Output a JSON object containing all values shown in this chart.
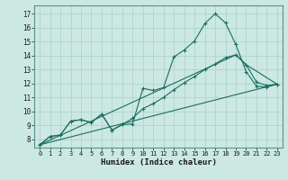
{
  "xlabel": "Humidex (Indice chaleur)",
  "xlim": [
    -0.5,
    23.5
  ],
  "ylim": [
    7.4,
    17.6
  ],
  "xticks": [
    0,
    1,
    2,
    3,
    4,
    5,
    6,
    7,
    8,
    9,
    10,
    11,
    12,
    13,
    14,
    15,
    16,
    17,
    18,
    19,
    20,
    21,
    22,
    23
  ],
  "yticks": [
    8,
    9,
    10,
    11,
    12,
    13,
    14,
    15,
    16,
    17
  ],
  "bg_color": "#cce8e2",
  "line_color": "#1a6e60",
  "grid_color": "#aacfc8",
  "line1_x": [
    0,
    1,
    2,
    3,
    4,
    5,
    6,
    7,
    8,
    9,
    10,
    11,
    12,
    13,
    14,
    15,
    16,
    17,
    18,
    19,
    20,
    21,
    22,
    23
  ],
  "line1_y": [
    7.6,
    8.2,
    8.3,
    9.3,
    9.4,
    9.2,
    9.8,
    8.65,
    9.05,
    9.1,
    11.65,
    11.5,
    11.7,
    13.9,
    14.4,
    15.05,
    16.3,
    17.0,
    16.35,
    14.8,
    12.85,
    11.8,
    11.75,
    11.95
  ],
  "line2_x": [
    0,
    1,
    2,
    3,
    4,
    5,
    6,
    7,
    8,
    9,
    10,
    11,
    12,
    13,
    14,
    15,
    16,
    17,
    18,
    19,
    20,
    21,
    22,
    23
  ],
  "line2_y": [
    7.6,
    8.2,
    8.3,
    9.3,
    9.4,
    9.2,
    9.8,
    8.65,
    9.05,
    9.5,
    10.2,
    10.55,
    11.0,
    11.55,
    12.05,
    12.5,
    13.0,
    13.4,
    13.85,
    14.05,
    13.35,
    12.1,
    11.85,
    11.95
  ],
  "line3_x": [
    0,
    23
  ],
  "line3_y": [
    7.6,
    11.95
  ],
  "line4_x": [
    0,
    19,
    20,
    23
  ],
  "line4_y": [
    7.6,
    14.05,
    13.35,
    11.95
  ]
}
